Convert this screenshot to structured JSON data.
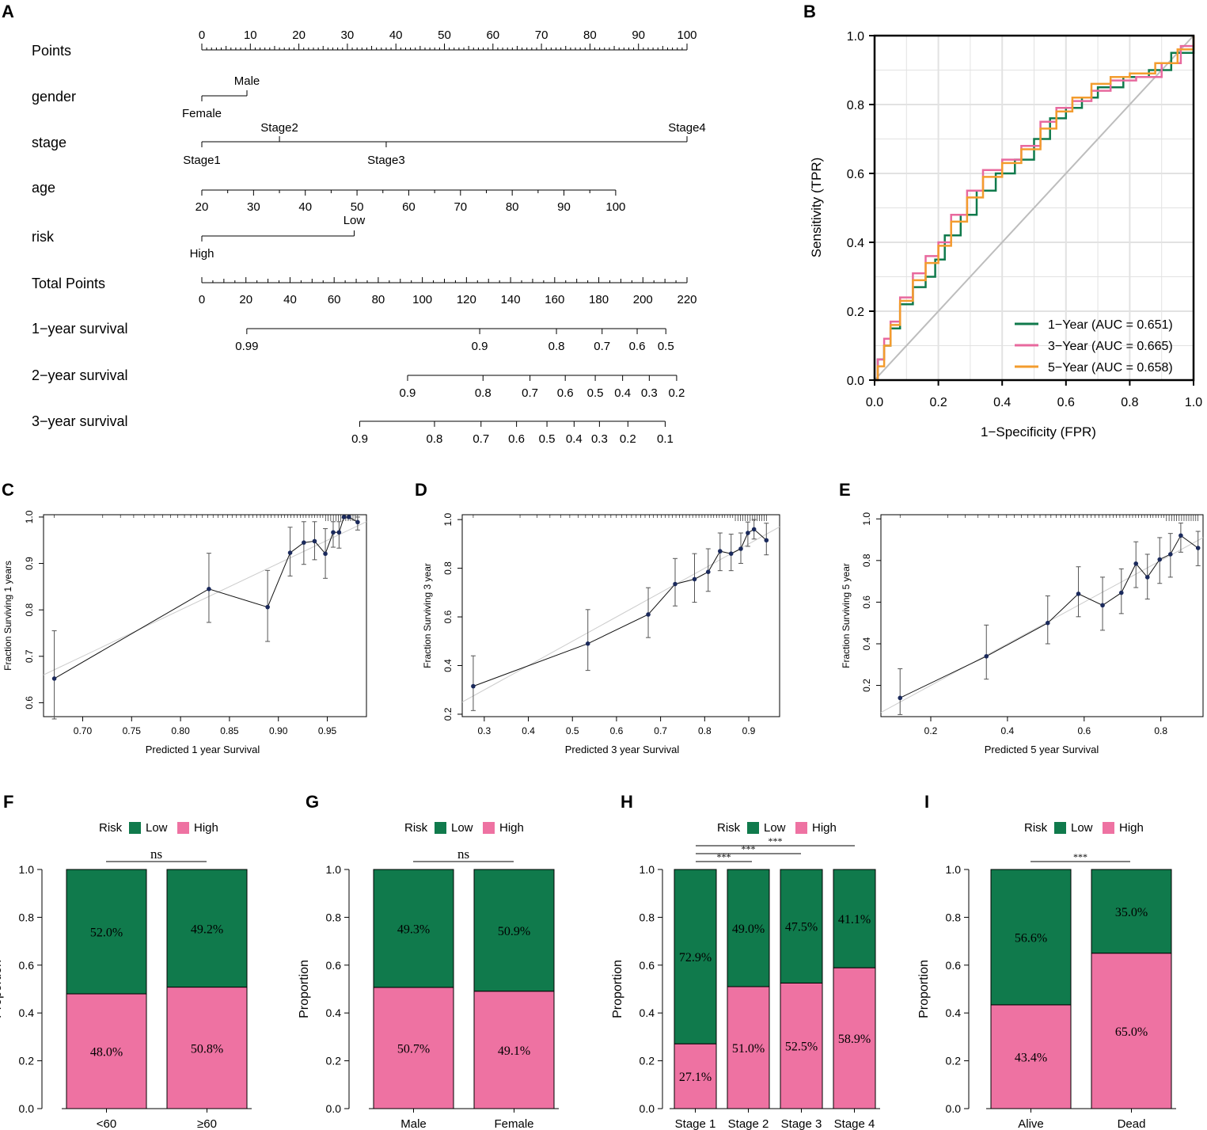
{
  "chart_data": [
    {
      "panel": "A",
      "type": "nomogram",
      "rows": [
        {
          "name": "Points",
          "label": "Points"
        },
        {
          "name": "gender",
          "label": "gender"
        },
        {
          "name": "stage",
          "label": "stage"
        },
        {
          "name": "age",
          "label": "age"
        },
        {
          "name": "risk",
          "label": "risk"
        },
        {
          "name": "total-points",
          "label": "Total Points"
        },
        {
          "name": "1-year-survival",
          "label": "1−year survival"
        },
        {
          "name": "2-year-survival",
          "label": "2−year survival"
        },
        {
          "name": "3-year-survival",
          "label": "3−year survival"
        }
      ],
      "points_scale": {
        "min": 0,
        "max": 100,
        "major": [
          0,
          10,
          20,
          30,
          40,
          50,
          60,
          70,
          80,
          90,
          100
        ]
      },
      "gender": [
        {
          "label": "Female",
          "points": 0
        },
        {
          "label": "Male",
          "points": 9.3
        }
      ],
      "stage": [
        {
          "label": "Stage1",
          "points": 0
        },
        {
          "label": "Stage2",
          "points": 16
        },
        {
          "label": "Stage3",
          "points": 38
        },
        {
          "label": "Stage4",
          "points": 100
        }
      ],
      "age": {
        "min_value": 20,
        "max_value": 100,
        "min_points": 0,
        "max_points": 85.3,
        "ticks": [
          20,
          30,
          40,
          50,
          60,
          70,
          80,
          90,
          100
        ]
      },
      "risk": [
        {
          "label": "High",
          "points": 0
        },
        {
          "label": "Low",
          "points": 31.4
        }
      ],
      "total_points": {
        "min": 0,
        "max": 220,
        "ticks": [
          0,
          20,
          40,
          60,
          80,
          100,
          120,
          140,
          160,
          180,
          200,
          220
        ]
      },
      "survival_1y": [
        {
          "label": "0.99",
          "total": 20.4
        },
        {
          "label": "0.9",
          "total": 126
        },
        {
          "label": "0.8",
          "total": 160.8
        },
        {
          "label": "0.7",
          "total": 181.5
        },
        {
          "label": "0.6",
          "total": 197.4
        },
        {
          "label": "0.5",
          "total": 210.4
        }
      ],
      "survival_2y": [
        {
          "label": "0.9",
          "total": 93.3
        },
        {
          "label": "0.8",
          "total": 127.5
        },
        {
          "label": "0.7",
          "total": 148.8
        },
        {
          "label": "0.6",
          "total": 164.8
        },
        {
          "label": "0.5",
          "total": 178.4
        },
        {
          "label": "0.4",
          "total": 190.8
        },
        {
          "label": "0.3",
          "total": 202.9
        },
        {
          "label": "0.2",
          "total": 215.3
        }
      ],
      "survival_3y": [
        {
          "label": "0.9",
          "total": 71.6
        },
        {
          "label": "0.8",
          "total": 105.5
        },
        {
          "label": "0.7",
          "total": 126.6
        },
        {
          "label": "0.6",
          "total": 142.7
        },
        {
          "label": "0.5",
          "total": 156.5
        },
        {
          "label": "0.4",
          "total": 168.8
        },
        {
          "label": "0.3",
          "total": 180.3
        },
        {
          "label": "0.2",
          "total": 193.2
        },
        {
          "label": "0.1",
          "total": 210.1
        }
      ]
    },
    {
      "panel": "B",
      "type": "line",
      "xlabel": "1−Specificity (FPR)",
      "ylabel": "Sensitivity (TPR)",
      "xlim": [
        0,
        1
      ],
      "ylim": [
        0,
        1
      ],
      "ticks": [
        "0.0",
        "0.2",
        "0.4",
        "0.6",
        "0.8",
        "1.0"
      ],
      "grid": true,
      "legend_position": "bottom-right",
      "series": [
        {
          "name": "1−Year (AUC = 0.651)",
          "color": "#107A4C",
          "points": [
            [
              0,
              0
            ],
            [
              0.01,
              0.06
            ],
            [
              0.03,
              0.1
            ],
            [
              0.05,
              0.15
            ],
            [
              0.08,
              0.22
            ],
            [
              0.12,
              0.27
            ],
            [
              0.16,
              0.3
            ],
            [
              0.19,
              0.35
            ],
            [
              0.22,
              0.42
            ],
            [
              0.27,
              0.48
            ],
            [
              0.32,
              0.55
            ],
            [
              0.38,
              0.6
            ],
            [
              0.44,
              0.64
            ],
            [
              0.5,
              0.7
            ],
            [
              0.55,
              0.76
            ],
            [
              0.6,
              0.79
            ],
            [
              0.65,
              0.82
            ],
            [
              0.7,
              0.85
            ],
            [
              0.78,
              0.88
            ],
            [
              0.86,
              0.9
            ],
            [
              0.93,
              0.95
            ],
            [
              1,
              1
            ]
          ]
        },
        {
          "name": "3−Year (AUC = 0.665)",
          "color": "#E8699E",
          "points": [
            [
              0,
              0
            ],
            [
              0.01,
              0.06
            ],
            [
              0.03,
              0.12
            ],
            [
              0.05,
              0.17
            ],
            [
              0.08,
              0.24
            ],
            [
              0.12,
              0.31
            ],
            [
              0.16,
              0.36
            ],
            [
              0.2,
              0.4
            ],
            [
              0.24,
              0.48
            ],
            [
              0.29,
              0.55
            ],
            [
              0.34,
              0.61
            ],
            [
              0.4,
              0.64
            ],
            [
              0.46,
              0.68
            ],
            [
              0.52,
              0.75
            ],
            [
              0.57,
              0.79
            ],
            [
              0.62,
              0.81
            ],
            [
              0.68,
              0.84
            ],
            [
              0.74,
              0.87
            ],
            [
              0.82,
              0.88
            ],
            [
              0.9,
              0.92
            ],
            [
              0.96,
              0.97
            ],
            [
              1,
              1
            ]
          ]
        },
        {
          "name": "5−Year (AUC = 0.658)",
          "color": "#F39C2E",
          "points": [
            [
              0,
              0
            ],
            [
              0.01,
              0.04
            ],
            [
              0.03,
              0.1
            ],
            [
              0.05,
              0.16
            ],
            [
              0.08,
              0.23
            ],
            [
              0.12,
              0.29
            ],
            [
              0.16,
              0.34
            ],
            [
              0.2,
              0.39
            ],
            [
              0.24,
              0.46
            ],
            [
              0.29,
              0.53
            ],
            [
              0.34,
              0.59
            ],
            [
              0.4,
              0.63
            ],
            [
              0.46,
              0.67
            ],
            [
              0.52,
              0.73
            ],
            [
              0.57,
              0.78
            ],
            [
              0.62,
              0.82
            ],
            [
              0.68,
              0.86
            ],
            [
              0.74,
              0.88
            ],
            [
              0.8,
              0.89
            ],
            [
              0.88,
              0.92
            ],
            [
              0.95,
              0.96
            ],
            [
              1,
              1
            ]
          ]
        }
      ]
    },
    {
      "panel": "C",
      "type": "scatter",
      "xlabel": "Predicted  1 year Survival",
      "ylabel": "Fraction Surviving 1 years",
      "xlim": [
        0.66,
        0.99
      ],
      "ylim": [
        0.57,
        1.005
      ],
      "xticks": [
        "0.70",
        "0.75",
        "0.80",
        "0.85",
        "0.90",
        "0.95"
      ],
      "yticks": [
        "0.6",
        "0.7",
        "0.8",
        "0.9",
        "1.0"
      ],
      "points": [
        {
          "x": 0.671,
          "y": 0.652,
          "lo": 0.565,
          "hi": 0.755
        },
        {
          "x": 0.829,
          "y": 0.845,
          "lo": 0.773,
          "hi": 0.922
        },
        {
          "x": 0.889,
          "y": 0.806,
          "lo": 0.732,
          "hi": 0.885
        },
        {
          "x": 0.912,
          "y": 0.923,
          "lo": 0.873,
          "hi": 0.978
        },
        {
          "x": 0.926,
          "y": 0.945,
          "lo": 0.898,
          "hi": 0.99
        },
        {
          "x": 0.937,
          "y": 0.948,
          "lo": 0.908,
          "hi": 0.99
        },
        {
          "x": 0.948,
          "y": 0.921,
          "lo": 0.868,
          "hi": 0.975
        },
        {
          "x": 0.956,
          "y": 0.967,
          "lo": 0.935,
          "hi": 0.99
        },
        {
          "x": 0.962,
          "y": 0.967,
          "lo": 0.933,
          "hi": 0.99
        },
        {
          "x": 0.967,
          "y": 1.0,
          "lo": 0.998,
          "hi": 1.0
        },
        {
          "x": 0.972,
          "y": 1.0,
          "lo": 0.998,
          "hi": 1.0
        },
        {
          "x": 0.981,
          "y": 0.989,
          "lo": 0.972,
          "hi": 1.0
        }
      ]
    },
    {
      "panel": "D",
      "type": "scatter",
      "xlabel": "Predicted  3 year Survival",
      "ylabel": "Fraction Surviving 3 year",
      "xlim": [
        0.25,
        0.97
      ],
      "ylim": [
        0.19,
        1.02
      ],
      "xticks": [
        "0.3",
        "0.4",
        "0.5",
        "0.6",
        "0.7",
        "0.8",
        "0.9"
      ],
      "yticks": [
        "0.2",
        "0.4",
        "0.6",
        "0.8",
        "1.0"
      ],
      "points": [
        {
          "x": 0.275,
          "y": 0.315,
          "lo": 0.215,
          "hi": 0.44
        },
        {
          "x": 0.535,
          "y": 0.49,
          "lo": 0.38,
          "hi": 0.63
        },
        {
          "x": 0.672,
          "y": 0.61,
          "lo": 0.515,
          "hi": 0.72
        },
        {
          "x": 0.733,
          "y": 0.735,
          "lo": 0.645,
          "hi": 0.84
        },
        {
          "x": 0.777,
          "y": 0.755,
          "lo": 0.66,
          "hi": 0.86
        },
        {
          "x": 0.808,
          "y": 0.785,
          "lo": 0.705,
          "hi": 0.88
        },
        {
          "x": 0.835,
          "y": 0.87,
          "lo": 0.79,
          "hi": 0.945
        },
        {
          "x": 0.86,
          "y": 0.86,
          "lo": 0.79,
          "hi": 0.94
        },
        {
          "x": 0.882,
          "y": 0.88,
          "lo": 0.82,
          "hi": 0.945
        },
        {
          "x": 0.898,
          "y": 0.945,
          "lo": 0.89,
          "hi": 0.99
        },
        {
          "x": 0.912,
          "y": 0.96,
          "lo": 0.92,
          "hi": 1.0
        },
        {
          "x": 0.94,
          "y": 0.915,
          "lo": 0.855,
          "hi": 0.985
        }
      ]
    },
    {
      "panel": "E",
      "type": "scatter",
      "xlabel": "Predicted  5 year Survival",
      "ylabel": "Fraction Surviving 5 year",
      "xlim": [
        0.07,
        0.91
      ],
      "ylim": [
        0.05,
        1.02
      ],
      "xticks": [
        "0.2",
        "0.4",
        "0.6",
        "0.8"
      ],
      "yticks": [
        "0.2",
        "0.4",
        "0.6",
        "0.8",
        "1.0"
      ],
      "points": [
        {
          "x": 0.12,
          "y": 0.14,
          "lo": 0.06,
          "hi": 0.28
        },
        {
          "x": 0.345,
          "y": 0.34,
          "lo": 0.23,
          "hi": 0.49
        },
        {
          "x": 0.505,
          "y": 0.5,
          "lo": 0.4,
          "hi": 0.63
        },
        {
          "x": 0.585,
          "y": 0.64,
          "lo": 0.53,
          "hi": 0.77
        },
        {
          "x": 0.648,
          "y": 0.585,
          "lo": 0.465,
          "hi": 0.72
        },
        {
          "x": 0.697,
          "y": 0.645,
          "lo": 0.545,
          "hi": 0.76
        },
        {
          "x": 0.735,
          "y": 0.785,
          "lo": 0.67,
          "hi": 0.89
        },
        {
          "x": 0.765,
          "y": 0.72,
          "lo": 0.615,
          "hi": 0.83
        },
        {
          "x": 0.797,
          "y": 0.805,
          "lo": 0.69,
          "hi": 0.91
        },
        {
          "x": 0.825,
          "y": 0.83,
          "lo": 0.72,
          "hi": 0.93
        },
        {
          "x": 0.852,
          "y": 0.92,
          "lo": 0.84,
          "hi": 0.98
        },
        {
          "x": 0.897,
          "y": 0.86,
          "lo": 0.775,
          "hi": 0.94
        }
      ]
    },
    {
      "panel": "F",
      "type": "bar",
      "stacked": true,
      "legend_title": "Risk",
      "legend": [
        "Low",
        "High"
      ],
      "ylabel": "Proportion",
      "ylim": [
        0,
        1
      ],
      "yticks": [
        "0.0",
        "0.2",
        "0.4",
        "0.6",
        "0.8",
        "1.0"
      ],
      "categories": [
        "<60",
        "≥60"
      ],
      "series": [
        {
          "name": "Low",
          "color": "#107A4C",
          "values": [
            0.52,
            0.492
          ],
          "labels": [
            "52.0%",
            "49.2%"
          ]
        },
        {
          "name": "High",
          "color": "#EE72A2",
          "values": [
            0.48,
            0.508
          ],
          "labels": [
            "48.0%",
            "50.8%"
          ]
        }
      ],
      "comparisons": [
        {
          "from": 0,
          "to": 1,
          "label": "ns"
        }
      ]
    },
    {
      "panel": "G",
      "type": "bar",
      "stacked": true,
      "legend_title": "Risk",
      "legend": [
        "Low",
        "High"
      ],
      "ylabel": "Proportion",
      "ylim": [
        0,
        1
      ],
      "yticks": [
        "0.0",
        "0.2",
        "0.4",
        "0.6",
        "0.8",
        "1.0"
      ],
      "categories": [
        "Male",
        "Female"
      ],
      "series": [
        {
          "name": "Low",
          "color": "#107A4C",
          "values": [
            0.493,
            0.509
          ],
          "labels": [
            "49.3%",
            "50.9%"
          ]
        },
        {
          "name": "High",
          "color": "#EE72A2",
          "values": [
            0.507,
            0.491
          ],
          "labels": [
            "50.7%",
            "49.1%"
          ]
        }
      ],
      "comparisons": [
        {
          "from": 0,
          "to": 1,
          "label": "ns"
        }
      ]
    },
    {
      "panel": "H",
      "type": "bar",
      "stacked": true,
      "legend_title": "Risk",
      "legend": [
        "Low",
        "High"
      ],
      "ylabel": "Proportion",
      "ylim": [
        0,
        1
      ],
      "yticks": [
        "0.0",
        "0.2",
        "0.4",
        "0.6",
        "0.8",
        "1.0"
      ],
      "categories": [
        "Stage 1",
        "Stage 2",
        "Stage 3",
        "Stage 4"
      ],
      "series": [
        {
          "name": "Low",
          "color": "#107A4C",
          "values": [
            0.729,
            0.49,
            0.475,
            0.411
          ],
          "labels": [
            "72.9%",
            "49.0%",
            "47.5%",
            "41.1%"
          ]
        },
        {
          "name": "High",
          "color": "#EE72A2",
          "values": [
            0.271,
            0.51,
            0.525,
            0.589
          ],
          "labels": [
            "27.1%",
            "51.0%",
            "52.5%",
            "58.9%"
          ]
        }
      ],
      "comparisons": [
        {
          "from": 0,
          "to": 3,
          "label": "***"
        },
        {
          "from": 0,
          "to": 2,
          "label": "***"
        },
        {
          "from": 0,
          "to": 1,
          "label": "***"
        }
      ]
    },
    {
      "panel": "I",
      "type": "bar",
      "stacked": true,
      "legend_title": "Risk",
      "legend": [
        "Low",
        "High"
      ],
      "ylabel": "Proportion",
      "ylim": [
        0,
        1
      ],
      "yticks": [
        "0.0",
        "0.2",
        "0.4",
        "0.6",
        "0.8",
        "1.0"
      ],
      "categories": [
        "Alive",
        "Dead"
      ],
      "series": [
        {
          "name": "Low",
          "color": "#107A4C",
          "values": [
            0.566,
            0.35
          ],
          "labels": [
            "56.6%",
            "35.0%"
          ]
        },
        {
          "name": "High",
          "color": "#EE72A2",
          "values": [
            0.434,
            0.65
          ],
          "labels": [
            "43.4%",
            "65.0%"
          ]
        }
      ],
      "comparisons": [
        {
          "from": 0,
          "to": 1,
          "label": "***"
        }
      ]
    }
  ]
}
